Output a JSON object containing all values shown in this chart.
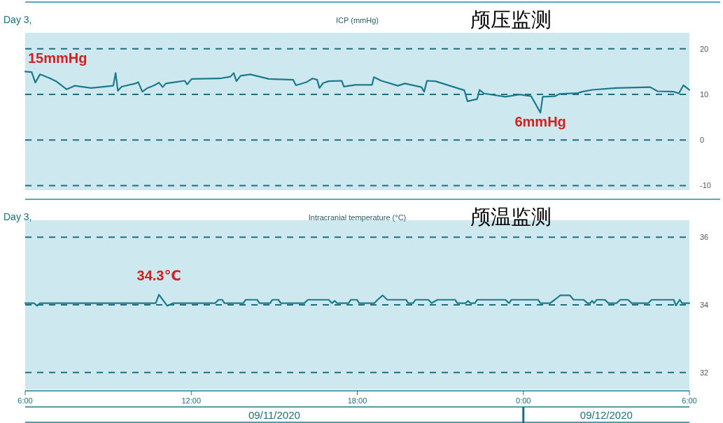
{
  "chart_data": [
    {
      "type": "line",
      "title": "颅压监测",
      "subtitle": "ICP (mmHg)",
      "xlim": [
        "2020-09-11T06:00",
        "2020-09-12T06:00"
      ],
      "ylim": [
        -11,
        23.5
      ],
      "yticks": [
        -10,
        0,
        10,
        20
      ],
      "grid": "y",
      "tick_labels": "y",
      "line_style": "solid",
      "annotations": [
        "Day 3,",
        {
          "text": "15mmHg",
          "x": "2020-09-11T06:00",
          "y": 15
        },
        {
          "text": "6mmHg",
          "x": "2020-09-12T00:37",
          "y": 6
        }
      ],
      "series": [
        {
          "color": "#1b7b8c",
          "x": [
            "2020-09-11T06:00",
            "2020-09-11T06:14",
            "2020-09-11T06:22",
            "2020-09-11T06:32",
            "2020-09-11T06:52",
            "2020-09-11T07:07",
            "2020-09-11T07:30",
            "2020-09-11T07:47",
            "2020-09-11T08:23",
            "2020-09-11T09:11",
            "2020-09-11T09:16",
            "2020-09-11T09:21",
            "2020-09-11T09:29",
            "2020-09-11T09:59",
            "2020-09-11T10:05",
            "2020-09-11T10:14",
            "2020-09-11T10:25",
            "2020-09-11T10:40",
            "2020-09-11T10:50",
            "2020-09-11T10:58",
            "2020-09-11T11:05",
            "2020-09-11T11:46",
            "2020-09-11T11:51",
            "2020-09-11T12:01",
            "2020-09-11T13:02",
            "2020-09-11T13:25",
            "2020-09-11T13:32",
            "2020-09-11T13:38",
            "2020-09-11T13:47",
            "2020-09-11T14:08",
            "2020-09-11T14:48",
            "2020-09-11T15:41",
            "2020-09-11T15:47",
            "2020-09-11T16:10",
            "2020-09-11T16:23",
            "2020-09-11T16:33",
            "2020-09-11T16:38",
            "2020-09-11T16:46",
            "2020-09-11T16:58",
            "2020-09-11T17:26",
            "2020-09-11T17:31",
            "2020-09-11T17:56",
            "2020-09-11T18:32",
            "2020-09-11T18:36",
            "2020-09-11T18:52",
            "2020-09-11T19:28",
            "2020-09-11T19:43",
            "2020-09-11T20:19",
            "2020-09-11T20:25",
            "2020-09-11T20:31",
            "2020-09-11T20:49",
            "2020-09-11T21:52",
            "2020-09-11T21:59",
            "2020-09-11T22:20",
            "2020-09-11T22:25",
            "2020-09-11T22:35",
            "2020-09-11T23:21",
            "2020-09-11T23:52",
            "2020-09-12T00:17",
            "2020-09-12T00:37",
            "2020-09-12T00:42",
            "2020-09-12T01:08",
            "2020-09-12T01:18",
            "2020-09-12T01:58",
            "2020-09-12T02:08",
            "2020-09-12T02:29",
            "2020-09-12T03:20",
            "2020-09-12T04:35",
            "2020-09-12T04:51",
            "2020-09-12T05:26",
            "2020-09-12T05:37",
            "2020-09-12T05:47",
            "2020-09-12T06:00"
          ],
          "values": [
            15,
            14.9,
            12.6,
            14.4,
            13.6,
            12.9,
            11.1,
            11.9,
            11.4,
            11.9,
            14.7,
            10.8,
            11.7,
            12.4,
            12.7,
            10.6,
            11.4,
            12.0,
            12.6,
            11.6,
            12.4,
            13.0,
            12.2,
            13.4,
            13.5,
            13.9,
            14.7,
            12.9,
            14.1,
            14.4,
            13.4,
            13.2,
            12.0,
            12.7,
            13.5,
            13.2,
            11.4,
            12.5,
            12.9,
            13.0,
            11.7,
            12.1,
            12.1,
            13.8,
            13.0,
            11.9,
            12.4,
            11.6,
            10.6,
            13.0,
            12.9,
            10.9,
            8.5,
            9.0,
            11.0,
            10.2,
            9.5,
            10.0,
            9.6,
            6,
            9.5,
            9.6,
            10.1,
            10.3,
            10.6,
            11.0,
            11.4,
            11.6,
            10.7,
            10.6,
            10.2,
            12.0,
            11.0
          ]
        }
      ]
    },
    {
      "type": "line",
      "title": "颅温监测",
      "subtitle": "Intracranial temperature (°C)",
      "xlim": [
        "2020-09-11T06:00",
        "2020-09-12T06:00"
      ],
      "ylim": [
        31.5,
        36.5
      ],
      "yticks": [
        32,
        34,
        36
      ],
      "xticks": [
        {
          "value": "2020-09-11T06:00",
          "label": "6:00"
        },
        {
          "value": "2020-09-11T12:00",
          "label": "12:00"
        },
        {
          "value": "2020-09-11T18:00",
          "label": "18:00"
        },
        {
          "value": "2020-09-12T00:00",
          "label": "0:00"
        },
        {
          "value": "2020-09-12T06:00",
          "label": "6:00"
        }
      ],
      "grid": "y",
      "line_style": "solid",
      "annotations": [
        "Day 3,",
        {
          "text": "34.3℃",
          "x": "2020-09-11T10:50",
          "y": 34.3
        },
        "09/11/2020",
        "09/12/2020"
      ],
      "series": [
        {
          "color": "#1b7b8c",
          "x": [
            "2020-09-11T06:00",
            "2020-09-11T06:19",
            "2020-09-11T06:26",
            "2020-09-11T06:32",
            "2020-09-11T10:43",
            "2020-09-11T10:50",
            "2020-09-11T11:08",
            "2020-09-11T11:21",
            "2020-09-11T12:52",
            "2020-09-11T12:59",
            "2020-09-11T13:07",
            "2020-09-11T13:12",
            "2020-09-11T13:53",
            "2020-09-11T13:58",
            "2020-09-11T14:23",
            "2020-09-11T14:28",
            "2020-09-11T14:51",
            "2020-09-11T14:56",
            "2020-09-11T15:09",
            "2020-09-11T15:14",
            "2020-09-11T16:05",
            "2020-09-11T16:13",
            "2020-09-11T16:58",
            "2020-09-11T17:05",
            "2020-09-11T17:11",
            "2020-09-11T17:16",
            "2020-09-11T17:41",
            "2020-09-11T17:46",
            "2020-09-11T17:59",
            "2020-09-11T18:04",
            "2020-09-11T18:37",
            "2020-09-11T18:44",
            "2020-09-11T18:55",
            "2020-09-11T19:05",
            "2020-09-11T19:46",
            "2020-09-11T19:50",
            "2020-09-11T20:01",
            "2020-09-11T20:06",
            "2020-09-11T20:34",
            "2020-09-11T20:41",
            "2020-09-11T20:54",
            "2020-09-11T21:32",
            "2020-09-11T21:37",
            "2020-09-11T21:55",
            "2020-09-11T22:00",
            "2020-09-11T22:05",
            "2020-09-11T22:15",
            "2020-09-11T22:20",
            "2020-09-11T23:21",
            "2020-09-11T23:29",
            "2020-09-11T23:34",
            "2020-09-12T00:32",
            "2020-09-12T00:37",
            "2020-09-12T00:58",
            "2020-09-12T01:08",
            "2020-09-12T01:20",
            "2020-09-12T01:41",
            "2020-09-12T01:49",
            "2020-09-12T02:11",
            "2020-09-12T02:19",
            "2020-09-12T02:25",
            "2020-09-12T02:29",
            "2020-09-12T02:33",
            "2020-09-12T02:39",
            "2020-09-12T02:57",
            "2020-09-12T03:04",
            "2020-09-12T03:22",
            "2020-09-12T03:30",
            "2020-09-12T03:47",
            "2020-09-12T03:55",
            "2020-09-12T04:31",
            "2020-09-12T04:38",
            "2020-09-12T05:26",
            "2020-09-12T05:31",
            "2020-09-12T05:39",
            "2020-09-12T05:44",
            "2020-09-12T06:00"
          ],
          "values": [
            34.05,
            34.05,
            33.97,
            34.05,
            34.05,
            34.3,
            33.97,
            34.05,
            34.05,
            34.15,
            34.15,
            34.05,
            34.05,
            34.15,
            34.15,
            34.05,
            34.05,
            34.15,
            34.15,
            34.05,
            34.05,
            34.15,
            34.15,
            34.05,
            34.12,
            34.05,
            34.05,
            34.15,
            34.15,
            34.05,
            34.05,
            34.15,
            34.28,
            34.15,
            34.15,
            34.05,
            34.05,
            34.15,
            34.15,
            34.05,
            34.15,
            34.15,
            34.05,
            34.05,
            34.12,
            34.05,
            34.05,
            34.15,
            34.15,
            34.05,
            34.15,
            34.15,
            34.05,
            34.05,
            34.15,
            34.28,
            34.28,
            34.15,
            34.15,
            34.05,
            34.05,
            34.12,
            34.05,
            34.15,
            34.15,
            34.05,
            34.05,
            34.15,
            34.15,
            34.05,
            34.05,
            34.15,
            34.15,
            33.98,
            34.15,
            34.05,
            34.05
          ]
        }
      ]
    }
  ]
}
